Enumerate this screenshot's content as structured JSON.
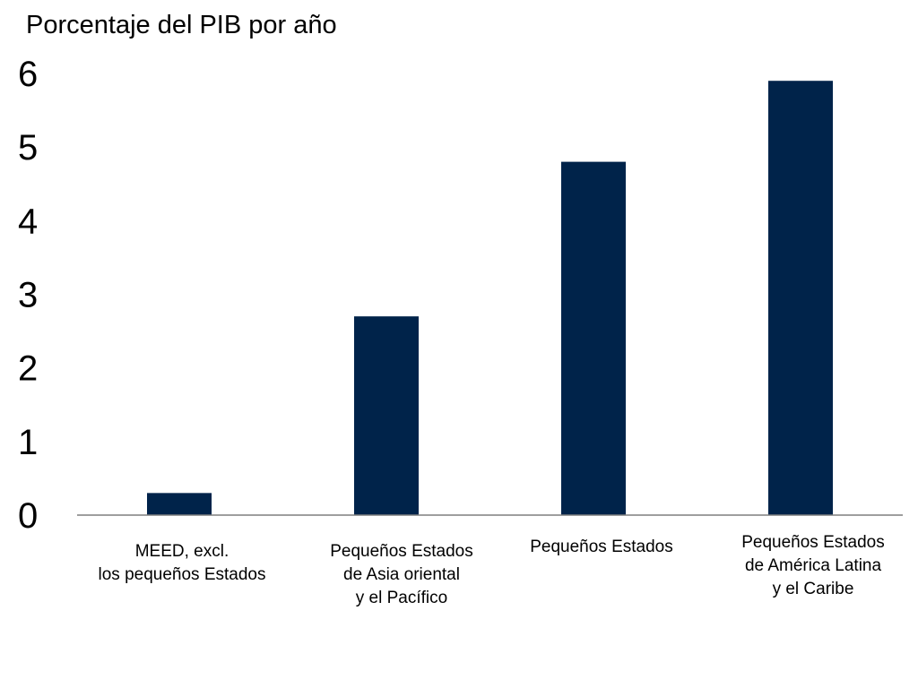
{
  "chart_data": {
    "type": "bar",
    "title": "",
    "ylabel": "Porcentaje del PIB por año",
    "xlabel": "",
    "ylim": [
      0,
      6
    ],
    "yticks": [
      "0",
      "1",
      "2",
      "3",
      "4",
      "5",
      "6"
    ],
    "grid": false,
    "categories": [
      "MEED, excl.\nlos pequeños Estados",
      "Pequeños Estados\nde Asia oriental\ny el Pacífico",
      "Pequeños Estados",
      "Pequeños Estados\nde América Latina\ny el Caribe"
    ],
    "values": [
      0.3,
      2.7,
      4.8,
      5.9
    ],
    "bar_color": "#00234a"
  }
}
